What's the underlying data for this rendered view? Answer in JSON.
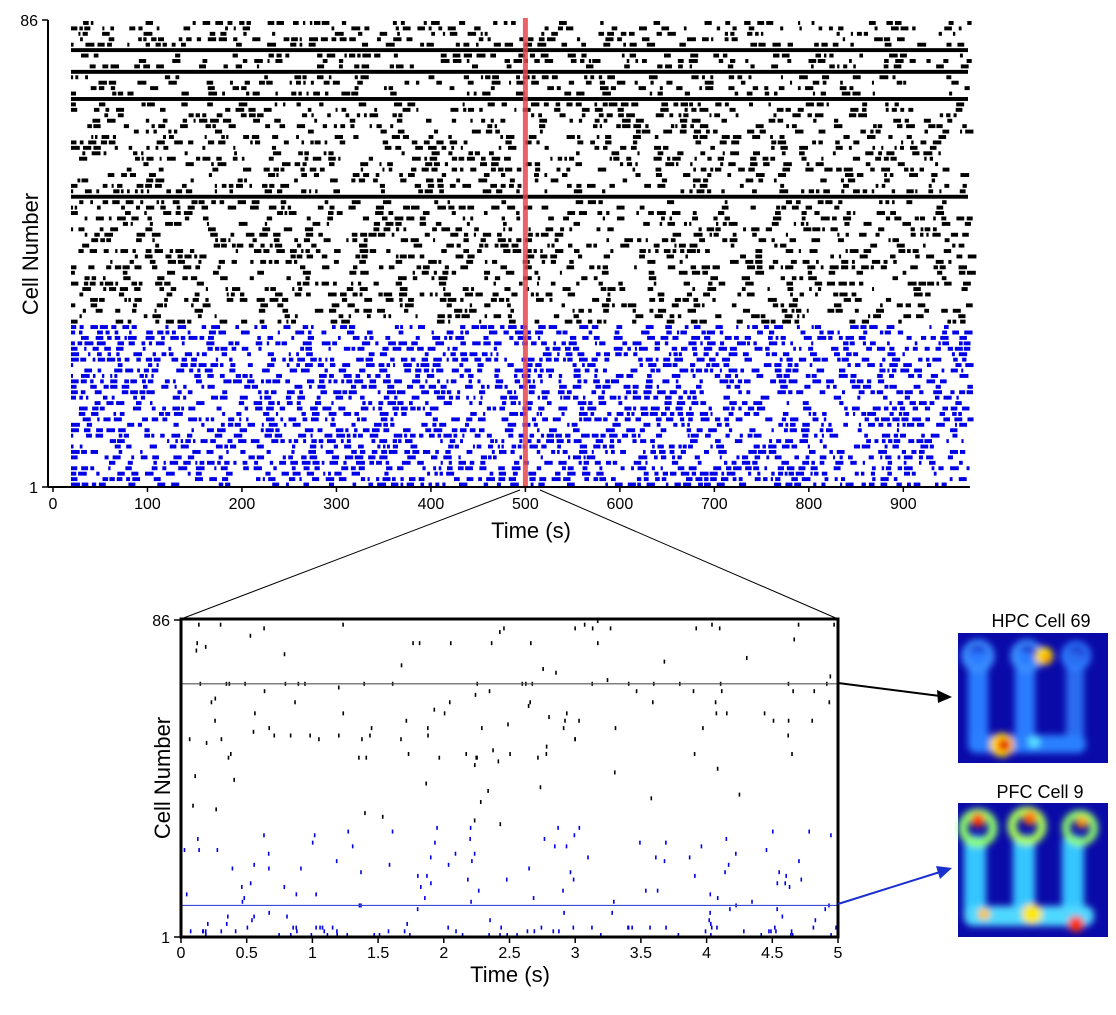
{
  "chart_data": [
    {
      "type": "raster",
      "xlabel": "Time (s)",
      "ylabel": "Cell Number",
      "xlim": [
        0,
        960
      ],
      "xticks": [
        "0",
        "100",
        "200",
        "300",
        "400",
        "500",
        "600",
        "700",
        "800",
        "900"
      ],
      "yticks": [
        "1",
        "86"
      ],
      "ylim": [
        1,
        86
      ],
      "highlight_time": 500,
      "highlight_color": "#e8454b",
      "series": [
        {
          "color": "#000000",
          "cells": [
            31,
            86
          ]
        },
        {
          "color": "#0000e6",
          "cells": [
            1,
            30
          ]
        }
      ]
    },
    {
      "type": "raster",
      "xlabel": "Time (s)",
      "ylabel": "Cell Number",
      "xlim": [
        0,
        5
      ],
      "xticks": [
        "0",
        "0.5",
        "1",
        "1.5",
        "2",
        "2.5",
        "3",
        "3.5",
        "4",
        "4.5",
        "5"
      ],
      "yticks": [
        "1",
        "86"
      ],
      "ylim": [
        1,
        86
      ],
      "marked_cells": [
        {
          "cell": 69,
          "color": "#000000"
        },
        {
          "cell": 9,
          "color": "#0000e6"
        }
      ]
    }
  ],
  "insets": [
    {
      "title": "HPC Cell 69",
      "arrow_color": "#000000"
    },
    {
      "title": "PFC Cell 9",
      "arrow_color": "#1a2fd0"
    }
  ]
}
